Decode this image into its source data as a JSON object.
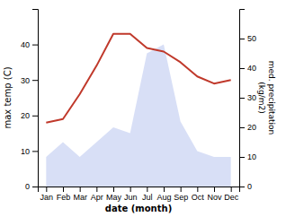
{
  "chart_data": {
    "type": "line",
    "categories": [
      "Jan",
      "Feb",
      "Mar",
      "Apr",
      "May",
      "Jun",
      "Jul",
      "Aug",
      "Sep",
      "Oct",
      "Nov",
      "Dec"
    ],
    "series": [
      {
        "type": "area",
        "axis": "y2",
        "color": "#b8c4ee",
        "values": [
          10,
          15,
          10,
          15,
          20,
          18,
          45,
          48,
          22,
          12,
          10,
          10
        ]
      },
      {
        "type": "line",
        "color": "#c0392b",
        "values": [
          18,
          19,
          26,
          34,
          43,
          43,
          39,
          38,
          35,
          31,
          29,
          30
        ]
      }
    ],
    "xlabel": "date (month)",
    "ylabel": "max temp (C)",
    "y2label": "med. precipitation\n(kg/m2)",
    "ylim": [
      0,
      50
    ],
    "yticks": [
      0,
      10,
      20,
      30,
      40
    ],
    "y2lim": [
      0,
      60
    ],
    "y2ticks": [
      0,
      10,
      20,
      30,
      40,
      50
    ],
    "grid": false
  }
}
